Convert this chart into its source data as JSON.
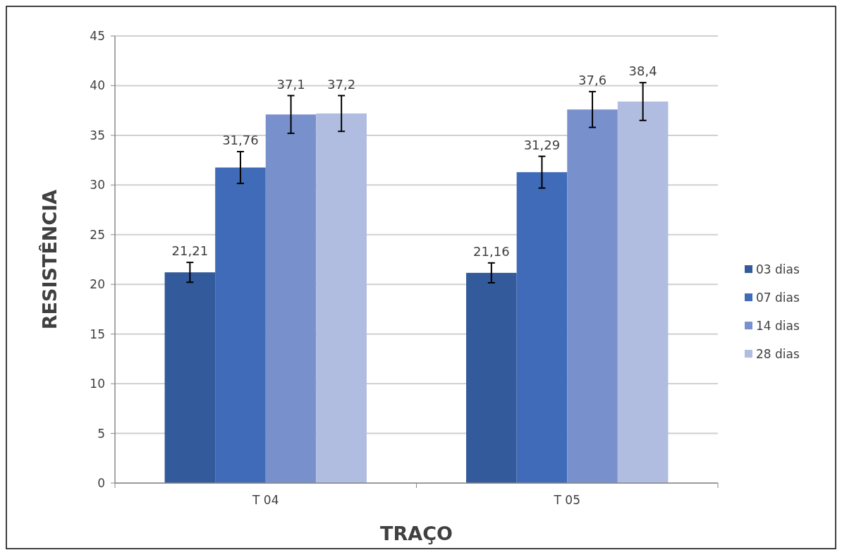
{
  "chart_data": {
    "type": "bar",
    "xlabel": "TRAÇO",
    "ylabel": "RESISTÊNCIA",
    "categories": [
      "T 04",
      "T 05"
    ],
    "series": [
      {
        "name": "03 dias",
        "color": "#335a9a",
        "values": [
          21.21,
          21.16
        ],
        "errors": [
          1.0,
          1.0
        ],
        "value_labels": [
          "21,21",
          "21,16"
        ]
      },
      {
        "name": "07 dias",
        "color": "#3f6bb8",
        "values": [
          31.76,
          31.29
        ],
        "errors": [
          1.6,
          1.6
        ],
        "value_labels": [
          "31,76",
          "31,29"
        ]
      },
      {
        "name": "14 dias",
        "color": "#7891cd",
        "values": [
          37.1,
          37.6
        ],
        "errors": [
          1.9,
          1.8
        ],
        "value_labels": [
          "37,1",
          "37,6"
        ]
      },
      {
        "name": "28 dias",
        "color": "#b1bde0",
        "values": [
          37.2,
          38.4
        ],
        "errors": [
          1.8,
          1.9
        ],
        "value_labels": [
          "37,2",
          "38,4"
        ]
      }
    ],
    "ylim": [
      0,
      45
    ],
    "yticks": [
      0,
      5,
      10,
      15,
      20,
      25,
      30,
      35,
      40,
      45
    ],
    "grid": "y",
    "legend": "right"
  }
}
